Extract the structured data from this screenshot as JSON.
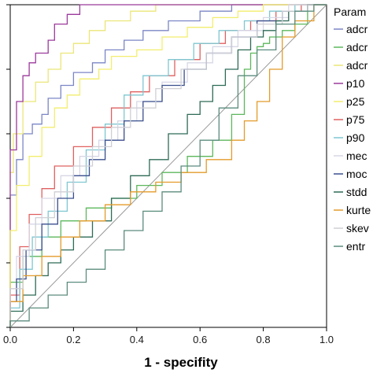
{
  "chart_data": {
    "type": "line",
    "title": "",
    "xlabel": "1 - specifity",
    "ylabel": "",
    "xlim": [
      0,
      1
    ],
    "ylim": [
      0,
      1
    ],
    "x_ticks": [
      "0.0",
      "0.2",
      "0.4",
      "0.6",
      "0.8",
      "1.0"
    ],
    "grid": false,
    "legend": {
      "title": "Param",
      "placement": "right",
      "entries": [
        "adcr",
        "adcr",
        "adcr",
        "p10",
        "p25",
        "p75",
        "p90",
        "mec",
        "moc",
        "stdd",
        "kurte",
        "skev",
        "entr"
      ]
    },
    "series": [
      {
        "name": "adcr",
        "color": "#7b86c6",
        "points": [
          [
            0,
            0.03
          ],
          [
            0,
            0.32
          ],
          [
            0.02,
            0.41
          ],
          [
            0.04,
            0.52
          ],
          [
            0.07,
            0.6
          ],
          [
            0.1,
            0.63
          ],
          [
            0.12,
            0.66
          ],
          [
            0.16,
            0.71
          ],
          [
            0.2,
            0.75
          ],
          [
            0.26,
            0.79
          ],
          [
            0.3,
            0.82
          ],
          [
            0.36,
            0.86
          ],
          [
            0.42,
            0.89
          ],
          [
            0.5,
            0.92
          ],
          [
            0.6,
            0.95
          ],
          [
            0.7,
            0.98
          ],
          [
            0.8,
            1.0
          ],
          [
            1.0,
            1.0
          ]
        ]
      },
      {
        "name": "adcr",
        "color": "#5cb85c",
        "points": [
          [
            0,
            0
          ],
          [
            0,
            0.06
          ],
          [
            0.04,
            0.14
          ],
          [
            0.1,
            0.22
          ],
          [
            0.16,
            0.28
          ],
          [
            0.24,
            0.33
          ],
          [
            0.32,
            0.37
          ],
          [
            0.4,
            0.4
          ],
          [
            0.48,
            0.44
          ],
          [
            0.56,
            0.48
          ],
          [
            0.64,
            0.53
          ],
          [
            0.7,
            0.58
          ],
          [
            0.74,
            0.66
          ],
          [
            0.76,
            0.8
          ],
          [
            0.78,
            0.85
          ],
          [
            0.8,
            0.87
          ],
          [
            0.82,
            0.88
          ],
          [
            0.86,
            0.9
          ],
          [
            0.9,
            0.92
          ],
          [
            0.94,
            0.94
          ],
          [
            1.0,
            1.0
          ]
        ]
      },
      {
        "name": "adcr",
        "color": "#ebe678",
        "points": [
          [
            0,
            0
          ],
          [
            0.01,
            0.48
          ],
          [
            0.04,
            0.6
          ],
          [
            0.08,
            0.7
          ],
          [
            0.12,
            0.76
          ],
          [
            0.16,
            0.8
          ],
          [
            0.2,
            0.85
          ],
          [
            0.25,
            0.88
          ],
          [
            0.3,
            0.92
          ],
          [
            0.38,
            0.95
          ],
          [
            0.46,
            0.98
          ],
          [
            0.56,
            1.0
          ],
          [
            1.0,
            1.0
          ]
        ]
      },
      {
        "name": "p10",
        "color": "#9b3a9c",
        "points": [
          [
            0,
            0.05
          ],
          [
            0.02,
            0.55
          ],
          [
            0.04,
            0.7
          ],
          [
            0.06,
            0.78
          ],
          [
            0.08,
            0.82
          ],
          [
            0.12,
            0.85
          ],
          [
            0.14,
            0.89
          ],
          [
            0.18,
            0.94
          ],
          [
            0.22,
            0.97
          ],
          [
            0.26,
            1.0
          ],
          [
            1.0,
            1.0
          ]
        ]
      },
      {
        "name": "p25",
        "color": "#f3ee6e",
        "points": [
          [
            0,
            0.08
          ],
          [
            0.02,
            0.3
          ],
          [
            0.06,
            0.44
          ],
          [
            0.1,
            0.53
          ],
          [
            0.14,
            0.62
          ],
          [
            0.18,
            0.68
          ],
          [
            0.22,
            0.72
          ],
          [
            0.28,
            0.77
          ],
          [
            0.32,
            0.8
          ],
          [
            0.4,
            0.84
          ],
          [
            0.48,
            0.86
          ],
          [
            0.56,
            0.9
          ],
          [
            0.64,
            0.93
          ],
          [
            0.72,
            0.96
          ],
          [
            0.8,
            0.98
          ],
          [
            0.9,
            1.0
          ],
          [
            1.0,
            1.0
          ]
        ]
      },
      {
        "name": "p75",
        "color": "#e06060",
        "points": [
          [
            0,
            0
          ],
          [
            0.03,
            0.1
          ],
          [
            0.06,
            0.25
          ],
          [
            0.1,
            0.35
          ],
          [
            0.14,
            0.43
          ],
          [
            0.2,
            0.5
          ],
          [
            0.26,
            0.56
          ],
          [
            0.32,
            0.62
          ],
          [
            0.38,
            0.68
          ],
          [
            0.44,
            0.73
          ],
          [
            0.52,
            0.78
          ],
          [
            0.6,
            0.83
          ],
          [
            0.68,
            0.88
          ],
          [
            0.76,
            0.92
          ],
          [
            0.84,
            0.95
          ],
          [
            0.92,
            0.98
          ],
          [
            1.0,
            1.0
          ]
        ]
      },
      {
        "name": "p90",
        "color": "#7fc7d1",
        "points": [
          [
            0,
            0
          ],
          [
            0.03,
            0.06
          ],
          [
            0.07,
            0.18
          ],
          [
            0.12,
            0.28
          ],
          [
            0.18,
            0.36
          ],
          [
            0.24,
            0.45
          ],
          [
            0.3,
            0.55
          ],
          [
            0.36,
            0.63
          ],
          [
            0.42,
            0.72
          ],
          [
            0.5,
            0.78
          ],
          [
            0.58,
            0.83
          ],
          [
            0.66,
            0.88
          ],
          [
            0.74,
            0.92
          ],
          [
            0.82,
            0.95
          ],
          [
            0.9,
            0.98
          ],
          [
            1.0,
            1.0
          ]
        ]
      },
      {
        "name": "mec",
        "color": "#d7d7e7",
        "points": [
          [
            0,
            0
          ],
          [
            0.02,
            0.12
          ],
          [
            0.06,
            0.22
          ],
          [
            0.1,
            0.32
          ],
          [
            0.16,
            0.4
          ],
          [
            0.22,
            0.47
          ],
          [
            0.28,
            0.53
          ],
          [
            0.34,
            0.58
          ],
          [
            0.4,
            0.64
          ],
          [
            0.48,
            0.7
          ],
          [
            0.56,
            0.76
          ],
          [
            0.64,
            0.82
          ],
          [
            0.72,
            0.87
          ],
          [
            0.8,
            0.92
          ],
          [
            0.88,
            0.96
          ],
          [
            1.0,
            1.0
          ]
        ]
      },
      {
        "name": "moc",
        "color": "#3a4f8e",
        "points": [
          [
            0,
            0
          ],
          [
            0.02,
            0.08
          ],
          [
            0.05,
            0.15
          ],
          [
            0.1,
            0.24
          ],
          [
            0.15,
            0.32
          ],
          [
            0.2,
            0.4
          ],
          [
            0.25,
            0.47
          ],
          [
            0.3,
            0.52
          ],
          [
            0.36,
            0.58
          ],
          [
            0.42,
            0.64
          ],
          [
            0.48,
            0.7
          ],
          [
            0.55,
            0.75
          ],
          [
            0.62,
            0.8
          ],
          [
            0.7,
            0.85
          ],
          [
            0.78,
            0.9
          ],
          [
            0.86,
            0.95
          ],
          [
            0.94,
            0.98
          ],
          [
            1.0,
            1.0
          ]
        ]
      },
      {
        "name": "stdd",
        "color": "#2e6b57",
        "points": [
          [
            0,
            0
          ],
          [
            0.04,
            0.05
          ],
          [
            0.08,
            0.1
          ],
          [
            0.12,
            0.16
          ],
          [
            0.16,
            0.2
          ],
          [
            0.2,
            0.24
          ],
          [
            0.26,
            0.28
          ],
          [
            0.32,
            0.33
          ],
          [
            0.38,
            0.4
          ],
          [
            0.44,
            0.47
          ],
          [
            0.5,
            0.52
          ],
          [
            0.56,
            0.6
          ],
          [
            0.6,
            0.66
          ],
          [
            0.64,
            0.7
          ],
          [
            0.68,
            0.75
          ],
          [
            0.72,
            0.8
          ],
          [
            0.76,
            0.86
          ],
          [
            0.8,
            0.9
          ],
          [
            0.84,
            0.92
          ],
          [
            0.88,
            0.95
          ],
          [
            0.94,
            0.98
          ],
          [
            1.0,
            1.0
          ]
        ]
      },
      {
        "name": "kurte",
        "color": "#e49b2a",
        "points": [
          [
            0,
            0
          ],
          [
            0.04,
            0.08
          ],
          [
            0.1,
            0.16
          ],
          [
            0.16,
            0.22
          ],
          [
            0.22,
            0.28
          ],
          [
            0.3,
            0.33
          ],
          [
            0.38,
            0.38
          ],
          [
            0.46,
            0.42
          ],
          [
            0.54,
            0.45
          ],
          [
            0.62,
            0.48
          ],
          [
            0.7,
            0.52
          ],
          [
            0.74,
            0.58
          ],
          [
            0.78,
            0.64
          ],
          [
            0.82,
            0.7
          ],
          [
            0.86,
            0.8
          ],
          [
            0.9,
            0.9
          ],
          [
            0.96,
            0.95
          ],
          [
            1.0,
            1.0
          ]
        ]
      },
      {
        "name": "skev",
        "color": "#cfcfd5",
        "points": [
          [
            0,
            0
          ],
          [
            0.04,
            0.12
          ],
          [
            0.08,
            0.24
          ],
          [
            0.14,
            0.34
          ],
          [
            0.2,
            0.42
          ],
          [
            0.26,
            0.5
          ],
          [
            0.32,
            0.56
          ],
          [
            0.38,
            0.62
          ],
          [
            0.46,
            0.68
          ],
          [
            0.54,
            0.74
          ],
          [
            0.62,
            0.8
          ],
          [
            0.7,
            0.85
          ],
          [
            0.78,
            0.9
          ],
          [
            0.86,
            0.94
          ],
          [
            0.94,
            0.98
          ],
          [
            1.0,
            1.0
          ]
        ]
      },
      {
        "name": "entr",
        "color": "#5b8c7e",
        "points": [
          [
            0,
            0
          ],
          [
            0.06,
            0.02
          ],
          [
            0.12,
            0.06
          ],
          [
            0.18,
            0.1
          ],
          [
            0.24,
            0.14
          ],
          [
            0.3,
            0.18
          ],
          [
            0.36,
            0.24
          ],
          [
            0.42,
            0.3
          ],
          [
            0.48,
            0.36
          ],
          [
            0.54,
            0.42
          ],
          [
            0.6,
            0.5
          ],
          [
            0.66,
            0.58
          ],
          [
            0.72,
            0.68
          ],
          [
            0.78,
            0.78
          ],
          [
            0.84,
            0.86
          ],
          [
            0.9,
            0.94
          ],
          [
            0.96,
            0.98
          ],
          [
            1.0,
            1.0
          ]
        ]
      }
    ]
  }
}
